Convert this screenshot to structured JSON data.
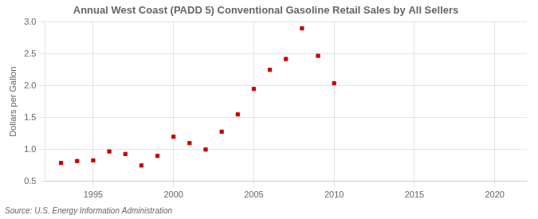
{
  "chart_data": {
    "type": "scatter",
    "title": "Annual West Coast (PADD 5) Conventional Gasoline Retail Sales by All Sellers",
    "ylabel": "Dollars per Gallon",
    "source": "Source: U.S. Energy Information Administration",
    "x": [
      1993,
      1994,
      1995,
      1996,
      1997,
      1998,
      1999,
      2000,
      2001,
      2002,
      2003,
      2004,
      2005,
      2006,
      2007,
      2008,
      2009,
      2010
    ],
    "values": [
      0.79,
      0.82,
      0.83,
      0.97,
      0.93,
      0.75,
      0.9,
      1.2,
      1.1,
      1.0,
      1.28,
      1.55,
      1.95,
      2.25,
      2.42,
      2.9,
      2.47,
      2.04
    ],
    "color": "#cc0000",
    "marker": "square",
    "xlim": [
      1992,
      2022
    ],
    "xticks": [
      1995,
      2000,
      2005,
      2010,
      2015,
      2020
    ],
    "ylim": [
      0.5,
      3.0
    ],
    "yticks": [
      0.5,
      {
        "value": 1.0,
        "label": "1.0"
      },
      1.5,
      {
        "value": 2.0,
        "label": "2.0"
      },
      2.5,
      {
        "value": 3.0,
        "label": "3.0"
      }
    ],
    "grid": true
  }
}
